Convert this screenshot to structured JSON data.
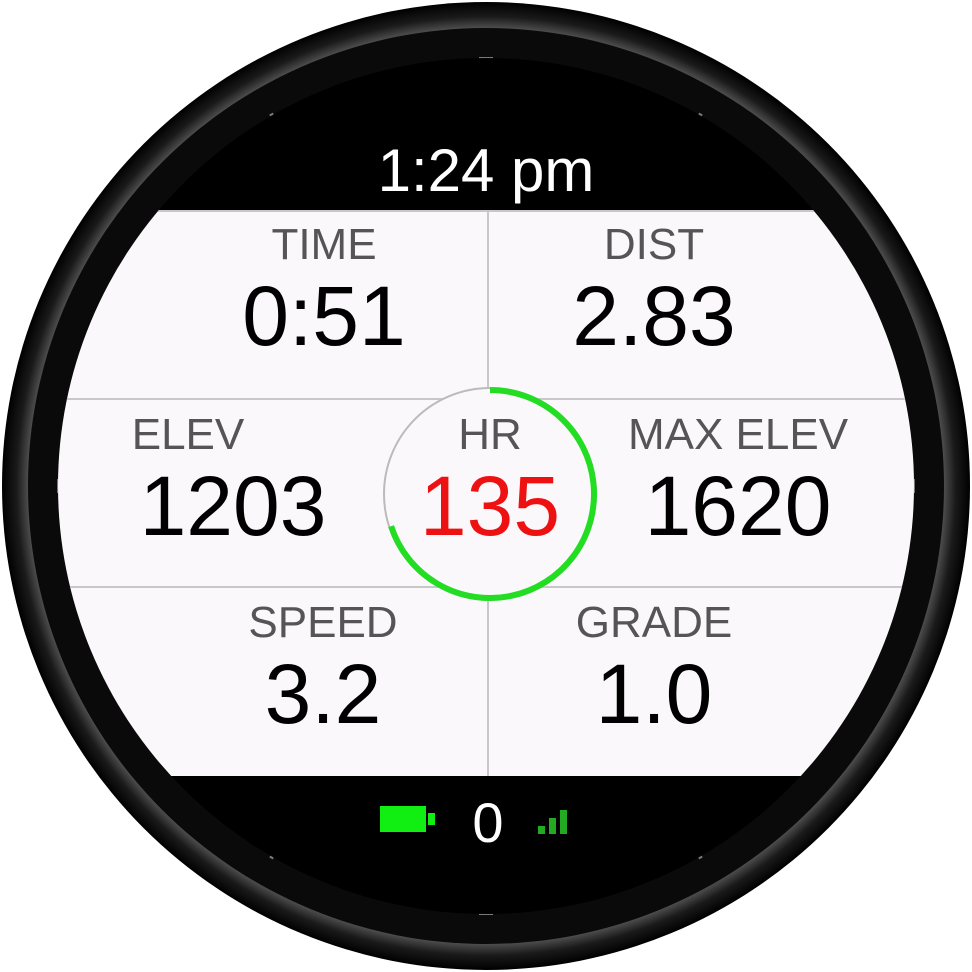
{
  "colors": {
    "background": "#ffffff",
    "bezel": "#101010",
    "screen": "#000000",
    "panel": "#fbf8fc",
    "label": "#555555",
    "value": "#000000",
    "hr_value": "#ee1111",
    "hr_ring_active": "#22dd22",
    "hr_ring_track": "#bbbbbb",
    "battery": "#11ee11",
    "signal": "#22aa22",
    "text_light": "#ffffff"
  },
  "clock": {
    "time": "1:24 pm"
  },
  "fields": {
    "time": {
      "label": "TIME",
      "value": "0:51"
    },
    "dist": {
      "label": "DIST",
      "value": "2.83"
    },
    "elev": {
      "label": "ELEV",
      "value": "1203"
    },
    "max_elev": {
      "label": "MAX ELEV",
      "value": "1620"
    },
    "speed": {
      "label": "SPEED",
      "value": "3.2"
    },
    "grade": {
      "label": "GRADE",
      "value": "1.0"
    }
  },
  "hr": {
    "label": "HR",
    "value": "135",
    "ring_fraction": 0.7
  },
  "status": {
    "battery_icon": "battery-full-icon",
    "count": "0",
    "signal_icon": "signal-bars-icon",
    "signal_level": 3,
    "signal_max": 3
  }
}
